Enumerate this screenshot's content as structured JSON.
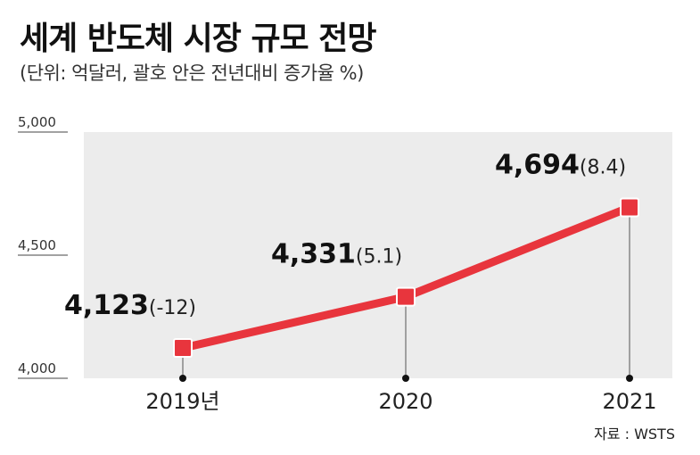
{
  "header": {
    "title": "세계 반도체 시장 규모 전망",
    "subtitle": "(단위: 억달러, 괄호 안은 전년대비 증가율 %)"
  },
  "source": "자료 : WSTS",
  "chart_data": {
    "type": "line",
    "x": [
      "2019년",
      "2020",
      "2021"
    ],
    "values": [
      4123,
      4331,
      4694
    ],
    "value_labels": [
      "4,123",
      "4,331",
      "4,694"
    ],
    "growth_labels": [
      "(-12)",
      "(5.1)",
      "(8.4)"
    ],
    "yticks": [
      4000,
      4500,
      5000
    ],
    "ytick_labels": [
      "4,000",
      "4,500",
      "5,000"
    ],
    "ylim": [
      4000,
      5000
    ],
    "colors": {
      "line": "#e8353d",
      "marker": "#e8353d",
      "plot_bg": "#ececec"
    }
  }
}
